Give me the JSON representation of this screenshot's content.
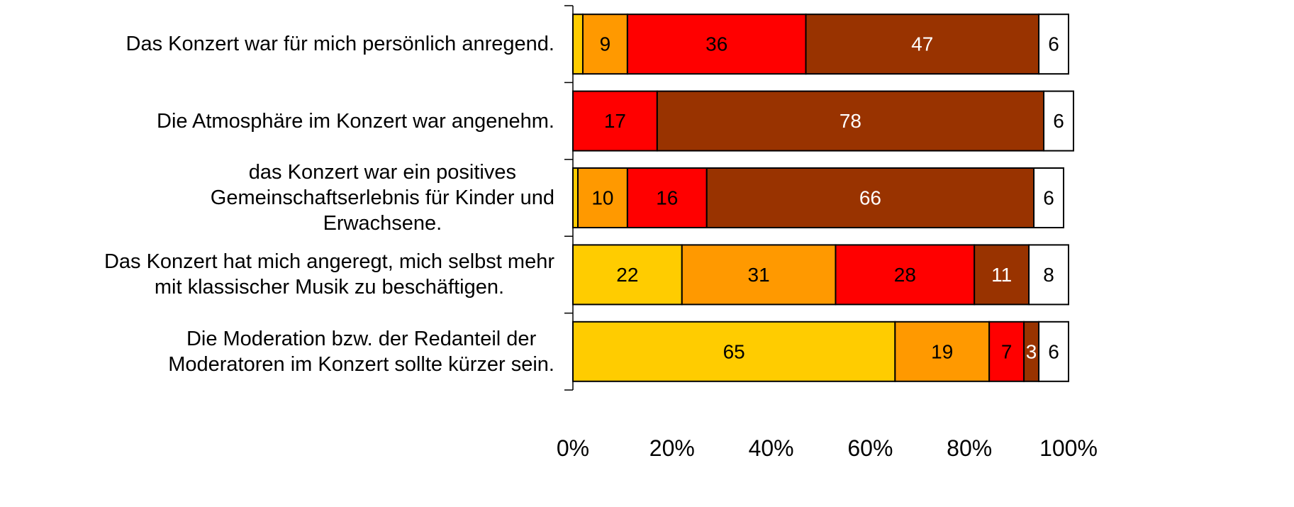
{
  "chart_data": {
    "type": "stacked-bar-horizontal",
    "categories": [
      "Das Konzert war für mich persönlich anregend.",
      "Die Atmosphäre im Konzert war angenehm.",
      "das Konzert war ein positives\nGemeinschaftserlebnis für Kinder und\nErwachsene.",
      "Das Konzert hat mich angeregt, mich selbst mehr\nmit klassischer Musik zu beschäftigen.",
      "Die Moderation bzw. der Redanteil der\nModeratoren im Konzert sollte kürzer sein."
    ],
    "series": [
      {
        "color": "#ffcc00",
        "label_color": "#000000",
        "values": [
          2,
          0,
          1,
          22,
          65
        ],
        "value_labels": [
          null,
          null,
          null,
          "22",
          "65"
        ]
      },
      {
        "color": "#ff9900",
        "label_color": "#000000",
        "values": [
          9,
          0,
          10,
          31,
          19
        ],
        "value_labels": [
          "9",
          null,
          "10",
          "31",
          "19"
        ]
      },
      {
        "color": "#ff0000",
        "label_color": "#000000",
        "values": [
          36,
          17,
          16,
          28,
          7
        ],
        "value_labels": [
          "36",
          "17",
          "16",
          "28",
          "7"
        ]
      },
      {
        "color": "#993300",
        "label_color": "#ffffff",
        "values": [
          47,
          78,
          66,
          11,
          3
        ],
        "value_labels": [
          "47",
          "78",
          "66",
          "11",
          "3"
        ]
      },
      {
        "color": "#ffffff",
        "label_color": "#000000",
        "values": [
          6,
          6,
          6,
          8,
          6
        ],
        "value_labels": [
          "6",
          "6",
          "6",
          "8",
          "6"
        ]
      }
    ],
    "xlim": [
      0,
      100
    ],
    "xticks": [
      {
        "value": 0,
        "label": "0%"
      },
      {
        "value": 20,
        "label": "20%"
      },
      {
        "value": 40,
        "label": "40%"
      },
      {
        "value": 60,
        "label": "60%"
      },
      {
        "value": 80,
        "label": "80%"
      },
      {
        "value": 100,
        "label": "100%"
      }
    ]
  }
}
